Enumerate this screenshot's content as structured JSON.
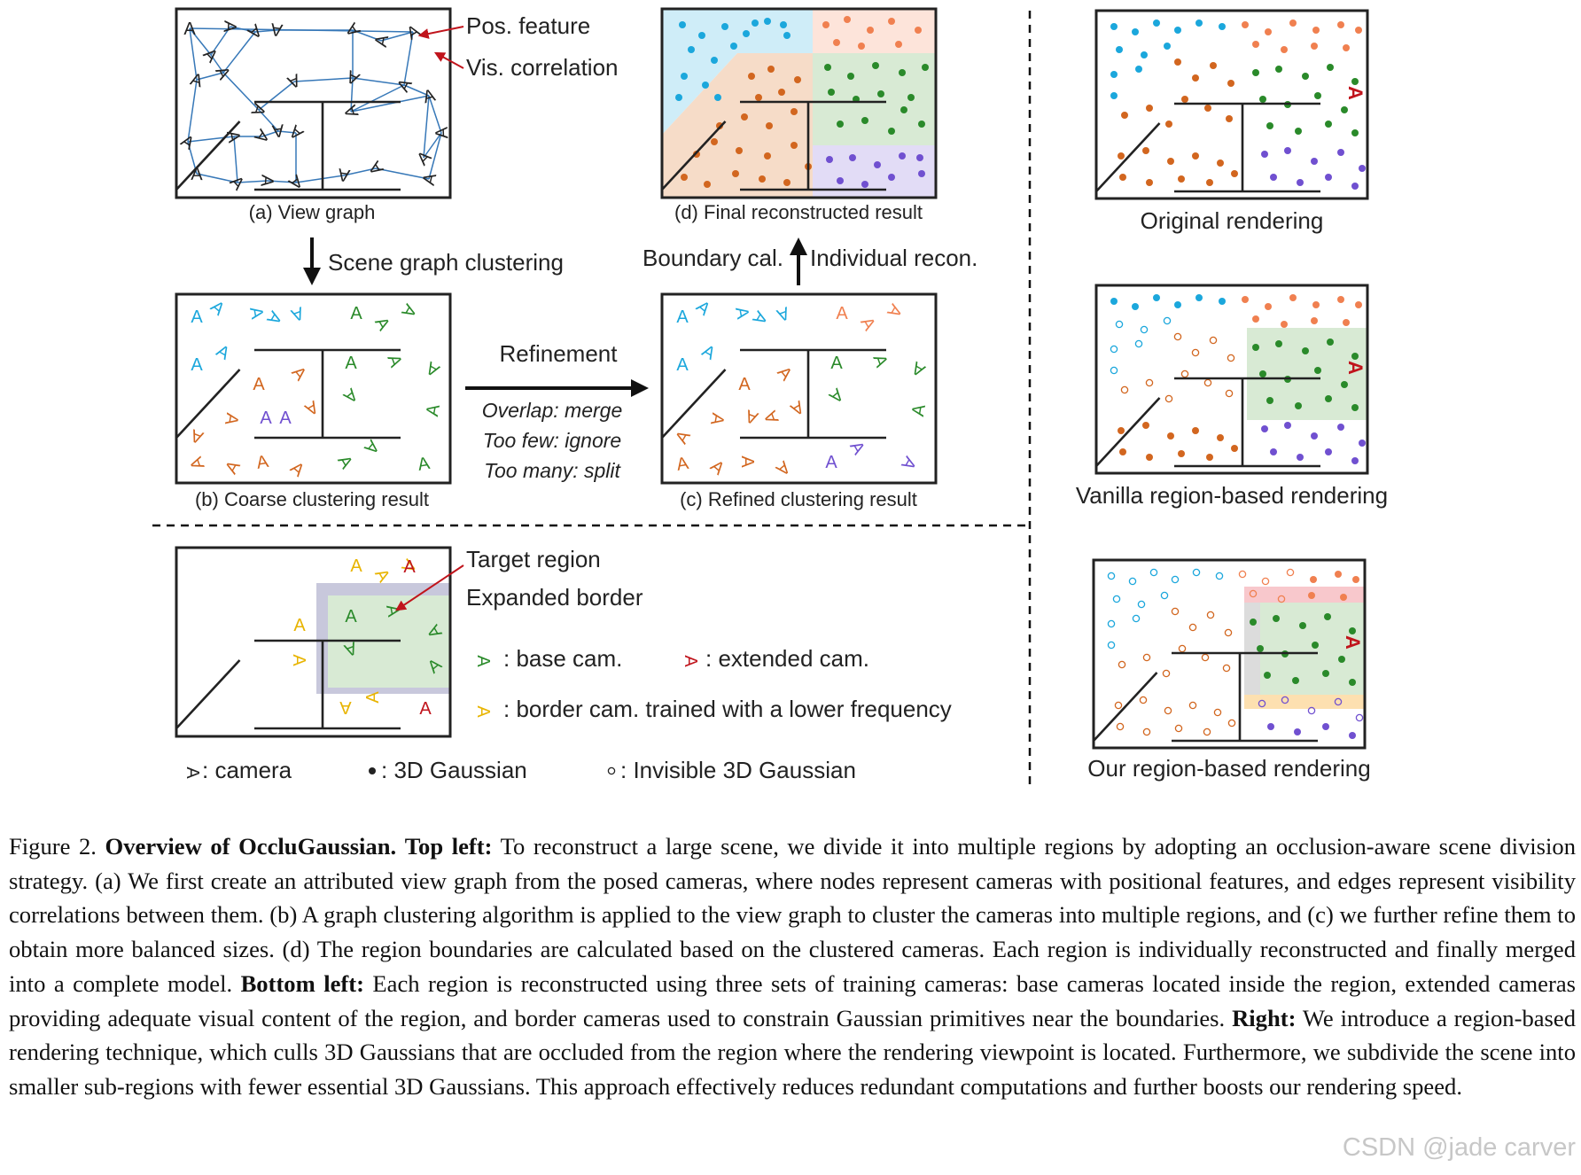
{
  "labels": {
    "pos_feature": "Pos. feature",
    "vis_correlation": "Vis. correlation",
    "a": "(a) View graph",
    "scene_graph_clustering": "Scene graph clustering",
    "b": "(b) Coarse clustering result",
    "refinement": "Refinement",
    "overlap": "Overlap: merge",
    "too_few": "Too few: ignore",
    "too_many": "Too many: split",
    "c": "(c) Refined clustering result",
    "boundary": "Boundary cal.",
    "individual": "Individual recon.",
    "d": "(d) Final reconstructed result",
    "target_region": "Target region",
    "expanded_border": "Expanded border",
    "base_cam": ": base cam.",
    "extended_cam": ": extended cam.",
    "border_cam": ": border cam. trained with a lower frequency",
    "camera": ": camera",
    "gaussian": ": 3D Gaussian",
    "invisible": ": Invisible 3D Gaussian",
    "original": "Original rendering",
    "vanilla": "Vanilla region-based rendering",
    "ours": "Our region-based rendering"
  },
  "caption": {
    "fig": "Figure 2.",
    "title": "Overview of OccluGaussian.",
    "top_left_h": "Top left:",
    "top_left": "To reconstruct a large scene, we divide it into multiple regions by adopting an occlusion-aware scene division strategy. (a) We first create an attributed view graph from the posed cameras, where nodes represent cameras with positional features, and edges represent visibility correlations between them. (b) A graph clustering algorithm is applied to the view graph to cluster the cameras into multiple regions, and (c) we further refine them to obtain more balanced sizes. (d) The region boundaries are calculated based on the clustered cameras. Each region is individually reconstructed and finally merged into a complete model.",
    "bottom_left_h": "Bottom left:",
    "bottom_left": "Each region is reconstructed using three sets of training cameras: base cameras located inside the region, extended cameras providing adequate visual content of the region, and border cameras used to constrain Gaussian primitives near the boundaries.",
    "right_h": "Right:",
    "right": "We introduce a region-based rendering technique, which culls 3D Gaussians that are occluded from the region where the rendering viewpoint is located. Furthermore, we subdivide the scene into smaller sub-regions with fewer essential 3D Gaussians. This approach effectively reduces redundant computations and further boosts our rendering speed."
  },
  "watermark": "CSDN @jade carver",
  "colors": {
    "blue": "#1ba7dc",
    "orange": "#d2661f",
    "green": "#2a8a2a",
    "purple": "#7050d0",
    "salmon": "#f08050",
    "red": "#c0141c",
    "yellow": "#e8b400",
    "edge": "#3778b8",
    "blue_bg": "#cfedf8",
    "orange_bg": "#f6dcc8",
    "green_bg": "#d8ead4",
    "purple_bg": "#e2dcf6",
    "salmon_bg": "#fde4da"
  }
}
